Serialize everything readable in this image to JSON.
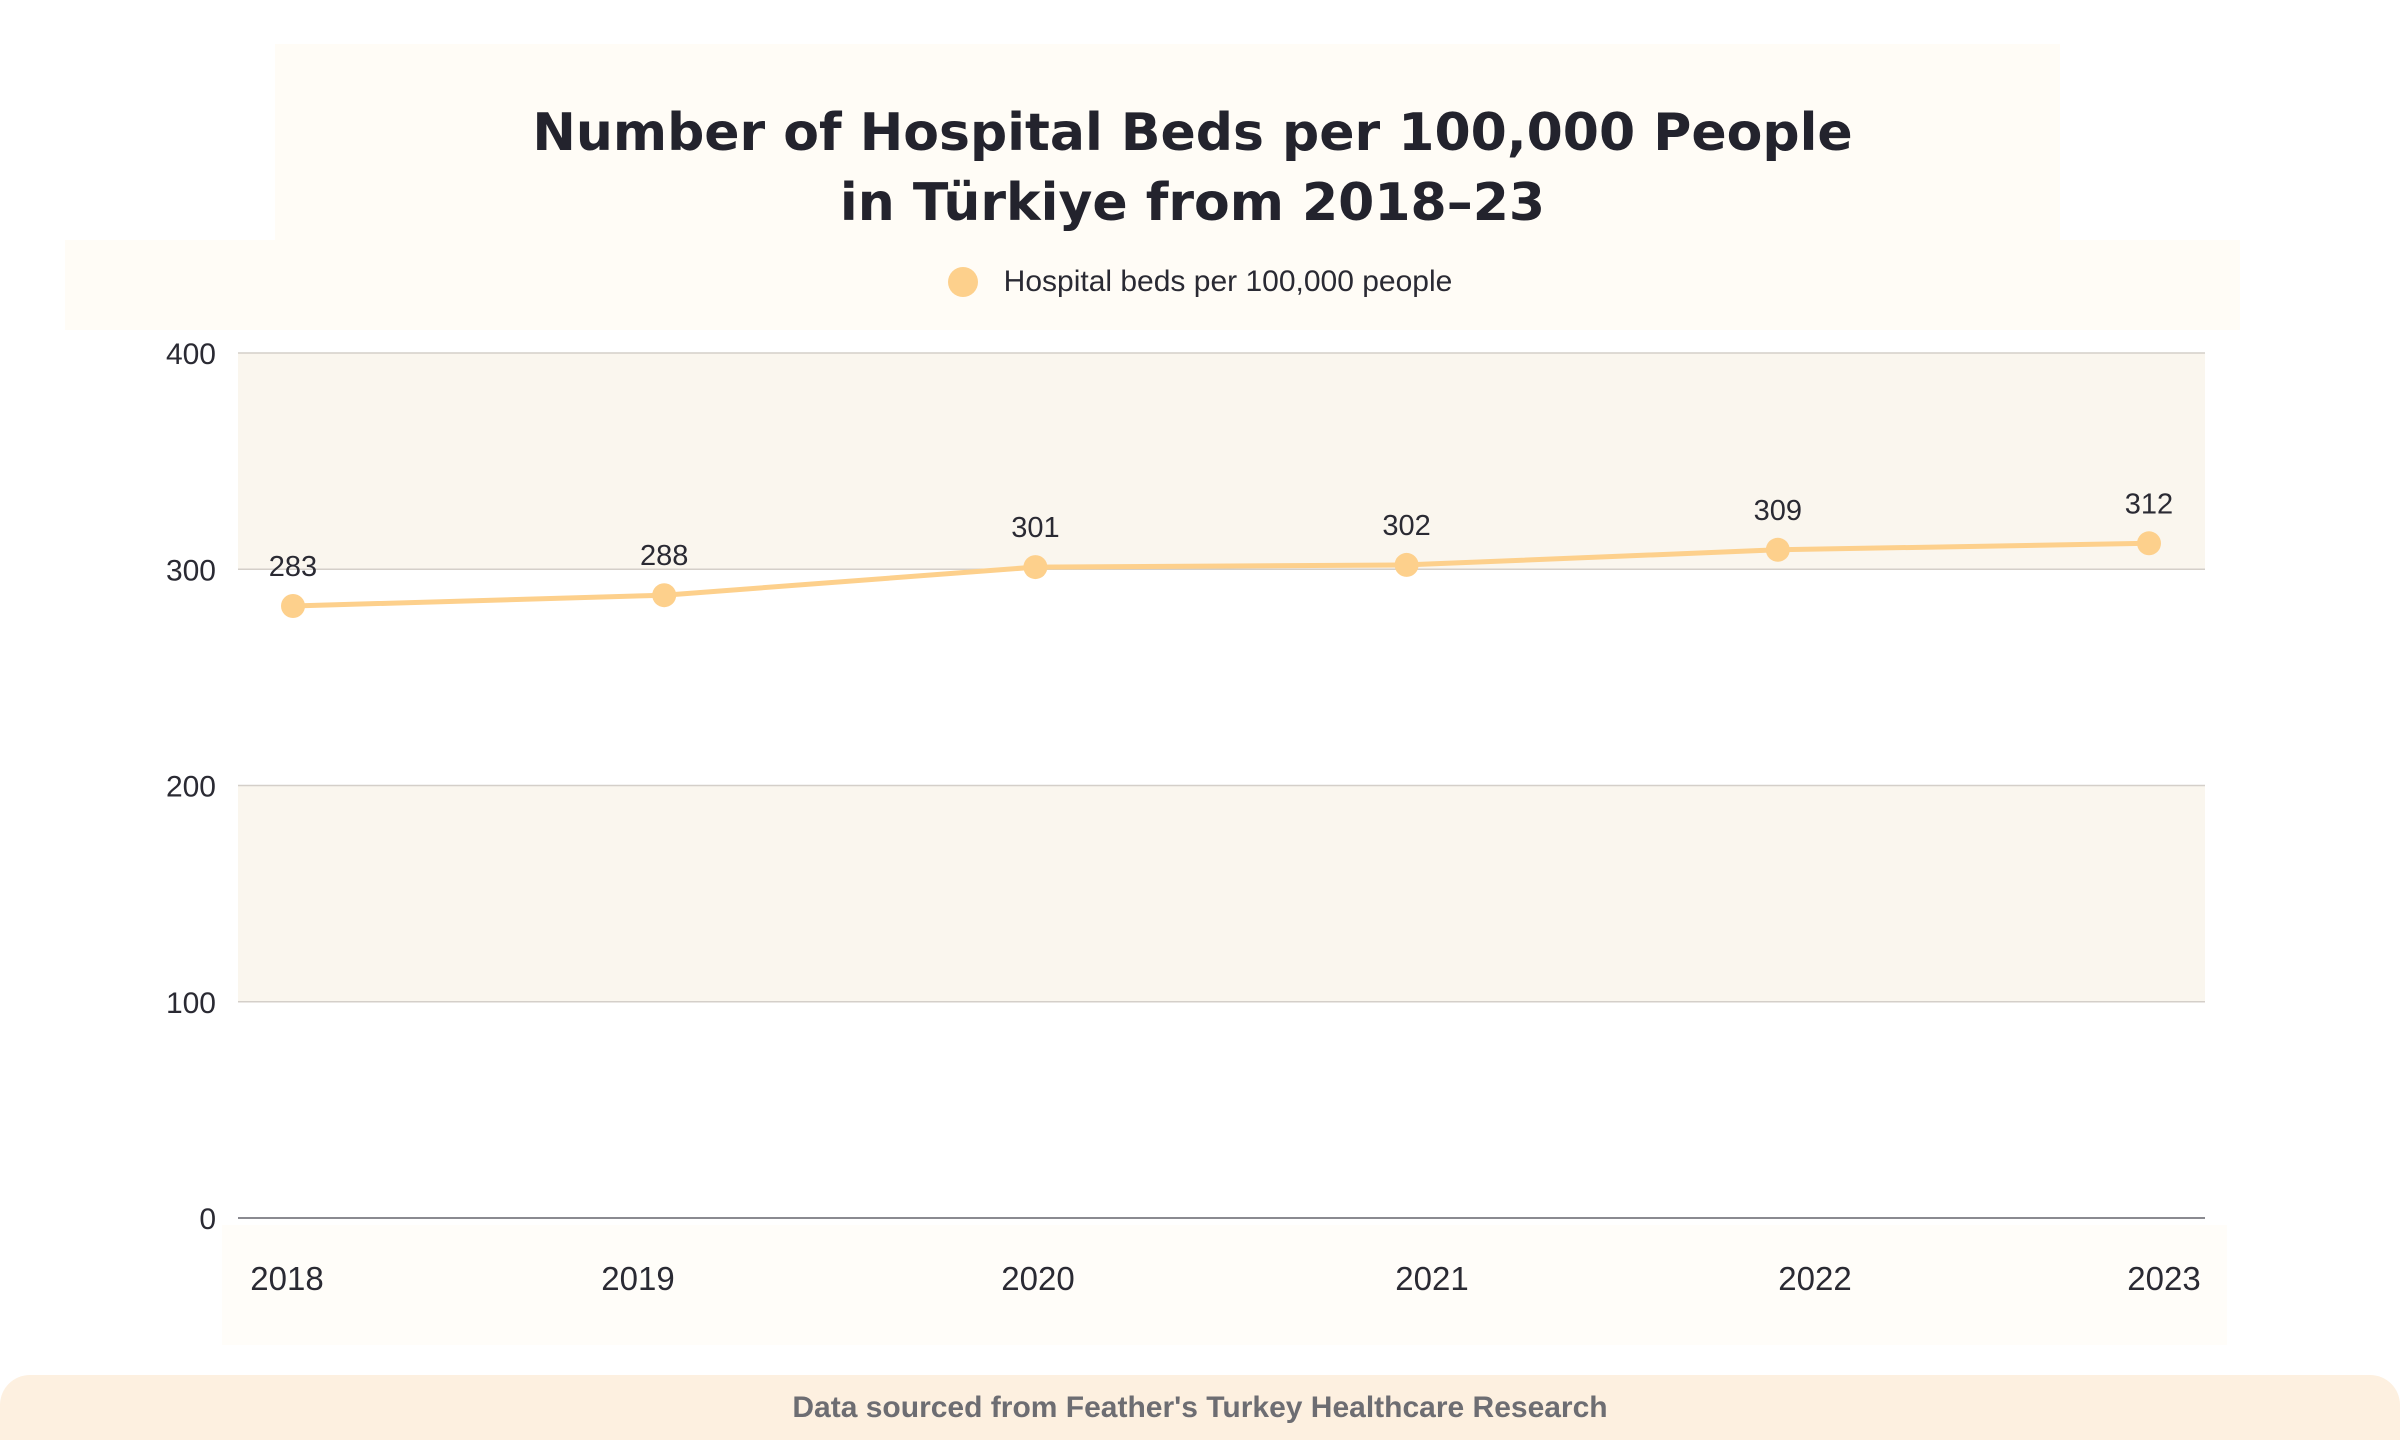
{
  "chart_data": {
    "type": "line",
    "title": "Number of Hospital Beds per 100,000 People in Türkiye from 2018–23",
    "title_lines": [
      "Number of Hospital Beds per 100,000 People",
      "in Türkiye from 2018–23"
    ],
    "categories": [
      "2018",
      "2019",
      "2020",
      "2021",
      "2022",
      "2023"
    ],
    "series": [
      {
        "name": "Hospital beds per 100,000 people",
        "values": [
          283,
          288,
          301,
          302,
          309,
          312
        ],
        "data_labels": [
          "283",
          "288",
          "301",
          "302",
          "309",
          "312"
        ],
        "color": "#fdd08c"
      }
    ],
    "y_ticks": [
      "0",
      "100",
      "200",
      "300",
      "400"
    ],
    "ylim": [
      0,
      400
    ],
    "xlabel": "",
    "ylabel": "",
    "grid": true,
    "legend_position": "top-center",
    "band_color": "#faf6ee",
    "grid_color": "#d4cfc9"
  },
  "footer": {
    "source_text": "Data sourced from Feather's Turkey Healthcare Research"
  }
}
